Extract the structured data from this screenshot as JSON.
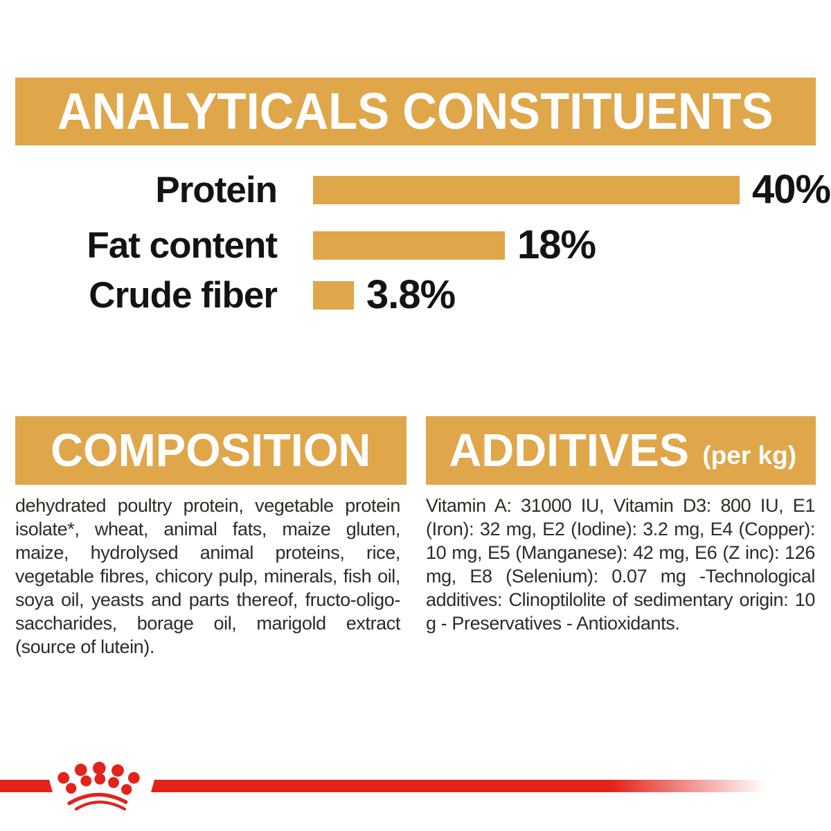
{
  "colors": {
    "gold": "#DFA64A",
    "red": "#E2231A",
    "heading_text": "#FFFFFF",
    "chart_text": "#15130F",
    "body_text": "#2D2B28",
    "background": "#FFFFFF"
  },
  "header": {
    "title": "ANALYTICALS CONSTITUENTS"
  },
  "chart_data": {
    "type": "bar",
    "orientation": "horizontal",
    "title": "ANALYTICALS CONSTITUENTS",
    "categories": [
      "Protein",
      "Fat content",
      "Crude fiber"
    ],
    "values": [
      40,
      18,
      3.8
    ],
    "value_labels": [
      "40%",
      "18%",
      "3.8%"
    ],
    "unit": "%",
    "xlim": [
      0,
      40
    ],
    "grid": false,
    "legend": false,
    "bar_color": "#DFA64A",
    "label_position": "left-of-bar",
    "value_position": "right-of-bar"
  },
  "sections": {
    "composition": {
      "title": "COMPOSITION",
      "body": "dehydrated poultry protein, vegetable protein isolate*, wheat, animal fats, maize gluten, maize, hydrolysed animal proteins, rice, vegetable fibres, chicory pulp, minerals, fish oil, soya oil, yeasts and parts thereof, fructo-oligo-saccharides, borage oil, marigold extract (source of lutein)."
    },
    "additives": {
      "title": "ADDITIVES",
      "title_suffix": "(per kg)",
      "body": "Vitamin A: 31000 IU, Vitamin D3: 800 IU, E1 (Iron): 32 mg, E2 (Iodine): 3.2 mg, E4 (Copper): 10 mg, E5 (Manganese): 42 mg, E6 (Z inc): 126 mg, E8 (Selenium): 0.07 mg -Technological additives: Clinoptilolite of sedimentary origin: 10 g - Preservatives - Antioxidants."
    }
  },
  "footer": {
    "logo_icon": "royal-canin-crown-icon",
    "divider_color": "#E2231A"
  }
}
